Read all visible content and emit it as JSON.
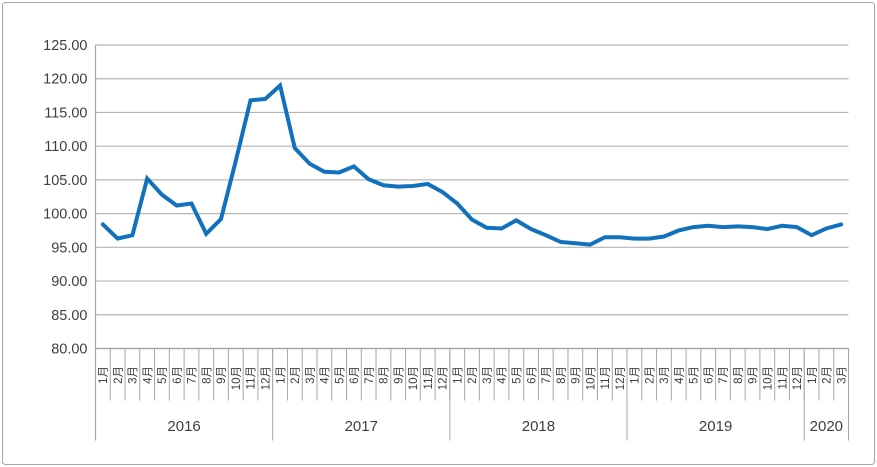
{
  "colors": {
    "background": "#ffffff",
    "frame_border": "#a6a6a6",
    "line": "#1271bc",
    "gridline": "#b5b5b5",
    "axis": "#a6a6a6",
    "text": "#3f3f3f"
  },
  "chart_data": {
    "type": "line",
    "title": "",
    "xlabel": "",
    "ylabel": "",
    "legend": "none",
    "grid": true,
    "month_label_suffix": "月",
    "y_axis": {
      "min": 80,
      "max": 125,
      "step": 5,
      "tick_labels": [
        "125.00",
        "120.00",
        "115.00",
        "110.00",
        "105.00",
        "100.00",
        "95.00",
        "90.00",
        "85.00",
        "80.00"
      ]
    },
    "year_groups": [
      {
        "label": "2016",
        "months": [
          1,
          2,
          3,
          4,
          5,
          6,
          7,
          8,
          9,
          10,
          11,
          12
        ],
        "values": [
          98.4,
          96.3,
          96.8,
          105.2,
          102.8,
          101.2,
          101.5,
          97.0,
          99.2,
          107.8,
          116.8,
          117.0
        ]
      },
      {
        "label": "2017",
        "months": [
          1,
          2,
          3,
          4,
          5,
          6,
          7,
          8,
          9,
          10,
          11,
          12
        ],
        "values": [
          119.0,
          109.7,
          107.4,
          106.2,
          106.1,
          107.0,
          105.1,
          104.2,
          104.0,
          104.1,
          104.4,
          103.2
        ]
      },
      {
        "label": "2018",
        "months": [
          1,
          2,
          3,
          4,
          5,
          6,
          7,
          8,
          9,
          10,
          11,
          12
        ],
        "values": [
          101.5,
          99.1,
          97.9,
          97.8,
          99.0,
          97.7,
          96.8,
          95.8,
          95.6,
          95.4,
          96.5,
          96.5
        ]
      },
      {
        "label": "2019",
        "months": [
          1,
          2,
          3,
          4,
          5,
          6,
          7,
          8,
          9,
          10,
          11,
          12
        ],
        "values": [
          96.3,
          96.3,
          96.6,
          97.5,
          98.0,
          98.2,
          98.0,
          98.1,
          98.0,
          97.7,
          98.2,
          98.0
        ]
      },
      {
        "label": "2020",
        "months": [
          1,
          2,
          3
        ],
        "values": [
          96.8,
          97.8,
          98.4
        ]
      }
    ]
  }
}
